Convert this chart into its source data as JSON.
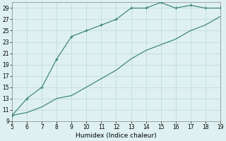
{
  "xlabel": "Humidex (Indice chaleur)",
  "xlim": [
    5,
    19
  ],
  "ylim": [
    9,
    30
  ],
  "xticks": [
    5,
    6,
    7,
    8,
    9,
    10,
    11,
    12,
    13,
    14,
    15,
    16,
    17,
    18,
    19
  ],
  "yticks": [
    9,
    11,
    13,
    15,
    17,
    19,
    21,
    23,
    25,
    27,
    29
  ],
  "line_color": "#2d7d6e",
  "bg_color": "#dff0f0",
  "grid_color": "#b8d8d8",
  "upper_x": [
    5,
    6,
    7,
    8,
    9,
    10,
    11,
    12,
    13,
    14,
    15,
    16,
    17,
    18,
    19
  ],
  "upper_y": [
    10,
    13,
    15,
    20,
    24,
    25,
    26,
    27,
    29,
    29,
    30,
    29,
    29.5,
    29,
    29
  ],
  "lower_x": [
    5,
    6,
    7,
    8,
    9,
    10,
    11,
    12,
    13,
    14,
    15,
    16,
    17,
    18,
    19
  ],
  "lower_y": [
    10,
    10.5,
    11.5,
    13,
    13.5,
    15,
    16.5,
    18,
    20,
    21.5,
    22.5,
    23.5,
    25,
    26,
    27.5
  ],
  "spine_color": "#888888"
}
